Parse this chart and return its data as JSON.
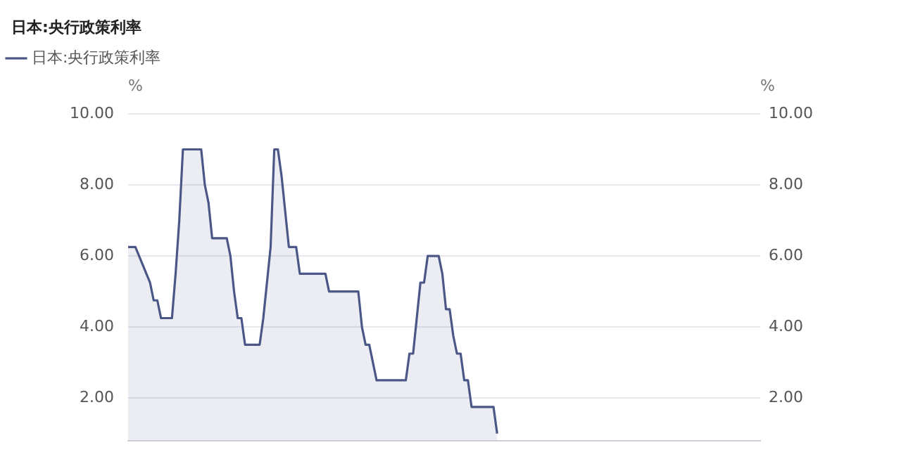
{
  "chart_data": {
    "type": "area",
    "title": "日本:央行政策利率",
    "ylabel": "%",
    "y2label": "%",
    "categories": [
      null,
      null,
      null,
      null,
      null,
      null,
      null,
      null,
      null,
      null,
      null,
      null,
      null,
      null,
      null,
      null,
      null,
      null,
      null,
      null,
      null,
      null,
      null,
      null,
      null,
      null,
      null,
      null,
      null,
      null,
      null,
      null,
      null,
      null,
      null,
      null,
      null,
      null,
      null,
      null,
      null,
      null,
      null,
      null,
      null,
      null,
      null,
      null,
      null,
      null,
      null,
      null,
      null,
      null,
      null,
      null,
      null,
      null,
      null,
      null,
      null,
      null,
      null,
      null,
      null,
      null,
      null,
      null,
      null,
      null,
      null,
      null,
      null,
      null,
      null,
      null,
      null,
      null,
      null,
      null,
      null,
      null,
      null,
      null,
      null,
      null,
      null,
      null,
      null,
      null,
      null,
      null,
      null,
      null,
      null,
      null,
      null,
      null,
      null,
      null,
      null,
      null,
      null,
      null,
      null,
      null,
      null,
      null,
      null,
      null,
      null,
      null,
      null,
      null,
      null,
      null,
      null,
      null,
      null,
      null,
      null,
      null,
      null,
      null,
      null,
      null,
      null,
      null,
      null,
      null,
      null,
      null,
      null,
      null,
      null,
      null,
      null,
      null,
      null,
      null,
      null,
      null,
      null,
      null,
      null,
      null,
      null,
      null,
      null,
      null,
      null,
      null,
      null,
      null,
      null,
      null,
      null,
      null,
      null,
      null,
      null,
      null,
      null,
      null,
      null,
      null,
      null,
      null,
      null,
      null,
      null,
      null,
      null,
      null
    ],
    "series": [
      {
        "name": "日本:央行政策利率",
        "color": "#4b5786",
        "values": [
          6.25,
          6.25,
          6.25,
          6.0,
          5.75,
          5.5,
          5.25,
          4.75,
          4.75,
          4.25,
          4.25,
          4.25,
          4.25,
          5.5,
          7.0,
          9.0,
          9.0,
          9.0,
          9.0,
          9.0,
          9.0,
          8.0,
          7.5,
          6.5,
          6.5,
          6.5,
          6.5,
          6.5,
          6.0,
          5.0,
          4.25,
          4.25,
          3.5,
          3.5,
          3.5,
          3.5,
          3.5,
          4.25,
          5.25,
          6.25,
          9.0,
          9.0,
          8.25,
          7.25,
          6.25,
          6.25,
          6.25,
          5.5,
          5.5,
          5.5,
          5.5,
          5.5,
          5.5,
          5.5,
          5.5,
          5.0,
          5.0,
          5.0,
          5.0,
          5.0,
          5.0,
          5.0,
          5.0,
          5.0,
          4.0,
          3.5,
          3.5,
          3.0,
          2.5,
          2.5,
          2.5,
          2.5,
          2.5,
          2.5,
          2.5,
          2.5,
          2.5,
          3.25,
          3.25,
          4.25,
          5.25,
          5.25,
          6.0,
          6.0,
          6.0,
          6.0,
          5.5,
          4.5,
          4.5,
          3.75,
          3.25,
          3.25,
          2.5,
          2.5,
          1.75,
          1.75,
          1.75,
          1.75,
          1.75,
          1.75,
          1.75,
          1.0,
          null,
          null,
          null,
          null,
          null,
          null,
          null,
          null,
          null,
          null,
          null,
          null,
          null,
          null,
          null,
          null,
          null,
          null,
          null,
          null,
          null,
          null,
          null,
          null,
          null,
          null,
          null,
          null,
          null,
          null,
          null,
          null,
          null,
          null,
          null,
          null,
          null,
          null,
          null,
          null,
          null,
          null,
          null,
          null,
          null,
          null,
          null,
          null,
          null,
          null,
          null,
          null,
          null,
          null,
          null,
          null,
          null,
          null,
          null,
          null,
          null,
          null,
          null,
          null,
          null,
          null,
          null,
          null,
          null,
          null,
          null,
          null
        ]
      }
    ],
    "ylim": [
      0.8,
      10
    ],
    "yticks": [
      {
        "value": 2,
        "label": "2.00"
      },
      {
        "value": 4,
        "label": "4.00"
      },
      {
        "value": 6,
        "label": "6.00"
      },
      {
        "value": 8,
        "label": "8.00"
      },
      {
        "value": 10,
        "label": "10.00"
      }
    ],
    "y2lim": [
      0.8,
      10
    ],
    "y2ticks": [
      {
        "value": 2,
        "label": "2.00"
      },
      {
        "value": 4,
        "label": "4.00"
      },
      {
        "value": 6,
        "label": "6.00"
      },
      {
        "value": 8,
        "label": "8.00"
      },
      {
        "value": 10,
        "label": "10.00"
      }
    ],
    "tick_labels": "y",
    "grid": "y",
    "legend": "top left",
    "marker": "none"
  }
}
